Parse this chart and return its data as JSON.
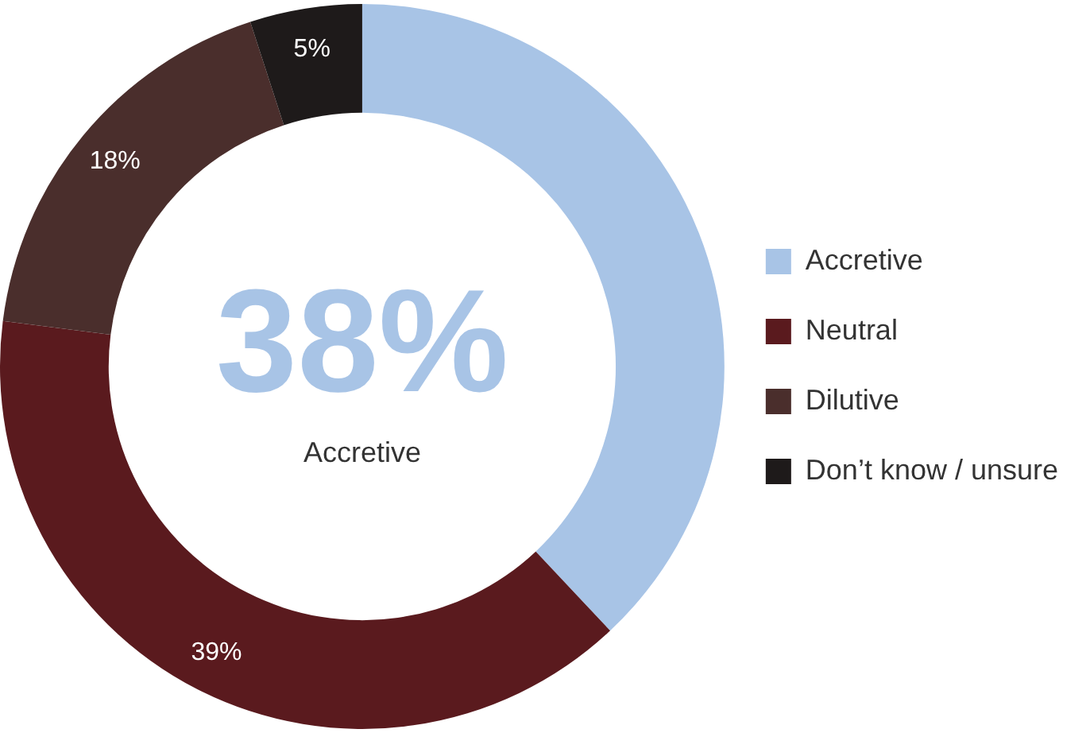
{
  "chart_data": {
    "type": "donut",
    "categories": [
      "Accretive",
      "Neutral",
      "Dilutive",
      "Don’t know / unsure"
    ],
    "values": [
      38,
      39,
      18,
      5
    ],
    "colors": [
      "#a8c4e6",
      "#5a1a1e",
      "#4a2e2c",
      "#1e1a1a"
    ],
    "value_labels": [
      null,
      "39%",
      "18%",
      "5%"
    ],
    "annotations": [
      "38%",
      "Accretive"
    ],
    "legend": "right"
  }
}
